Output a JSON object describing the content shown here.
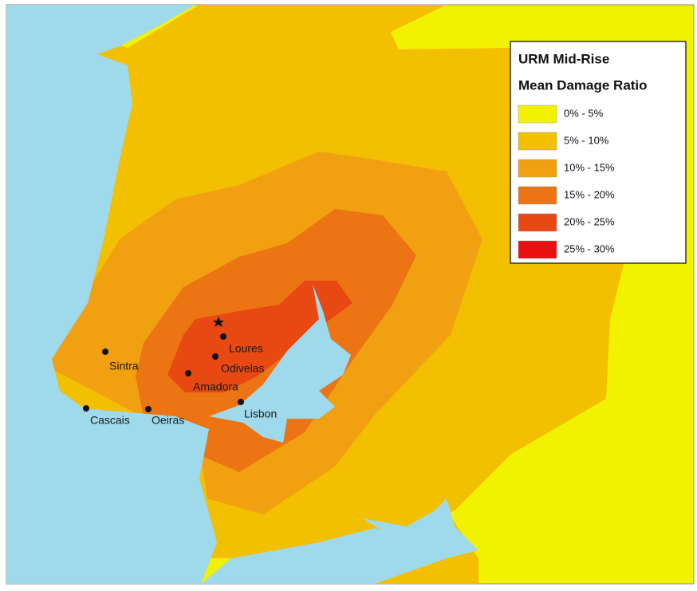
{
  "legend": {
    "title": [
      "URM Mid-Rise",
      "Mean Damage Ratio"
    ],
    "items": [
      {
        "label": "0% - 5%",
        "color": "#f2f200"
      },
      {
        "label": "5% - 10%",
        "color": "#f2c000"
      },
      {
        "label": "10% - 15%",
        "color": "#f0a010"
      },
      {
        "label": "15% - 20%",
        "color": "#ec7412"
      },
      {
        "label": "20% - 25%",
        "color": "#e84812"
      },
      {
        "label": "25% - 30%",
        "color": "#e81010"
      }
    ]
  },
  "cities": [
    {
      "label": "Sintra"
    },
    {
      "label": "Loures"
    },
    {
      "label": "Odivelas"
    },
    {
      "label": "Amadora"
    },
    {
      "label": "Lisbon"
    },
    {
      "label": "Cascais"
    },
    {
      "label": "Oeiras"
    }
  ]
}
